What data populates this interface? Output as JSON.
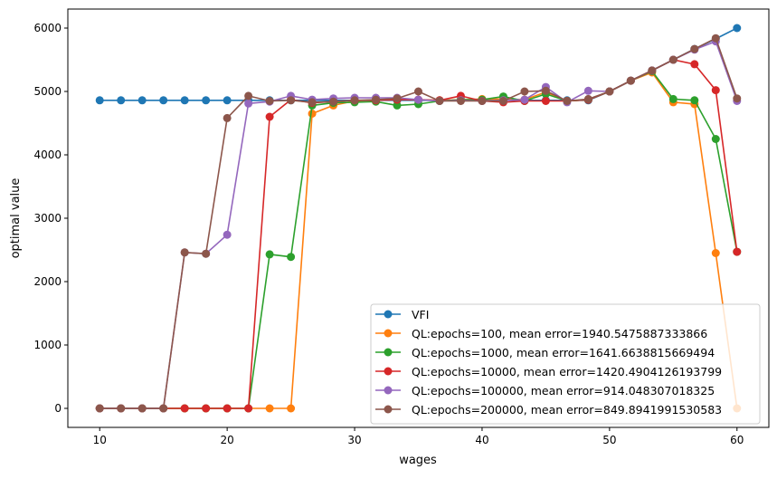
{
  "chart_data": {
    "type": "line",
    "title": "",
    "xlabel": "wages",
    "ylabel": "optimal value",
    "xlim": [
      7.5,
      62.5
    ],
    "ylim": [
      -300,
      6300
    ],
    "xticks": [
      10,
      20,
      30,
      40,
      50,
      60
    ],
    "yticks": [
      0,
      1000,
      2000,
      3000,
      4000,
      5000,
      6000
    ],
    "grid": false,
    "legend_position": "lower-right",
    "marker": "circle",
    "x": [
      10,
      11.667,
      13.333,
      15,
      16.667,
      18.333,
      20,
      21.667,
      23.333,
      25,
      26.667,
      28.333,
      30,
      31.667,
      33.333,
      35,
      36.667,
      38.333,
      40,
      41.667,
      43.333,
      45,
      46.667,
      48.333,
      50,
      51.667,
      53.333,
      55,
      56.667,
      58.333,
      60
    ],
    "series": [
      {
        "name": "VFI",
        "color": "#1f77b4",
        "values": [
          4860,
          4860,
          4860,
          4860,
          4860,
          4860,
          4860,
          4860,
          4860,
          4860,
          4860,
          4860,
          4860,
          4860,
          4860,
          4860,
          4860,
          4860,
          4860,
          4860,
          4860,
          4860,
          4860,
          4860,
          5000,
          5170,
          5330,
          5500,
          5670,
          5830,
          6000
        ]
      },
      {
        "name": "QL:epochs=100, mean error=1940.5475887333866",
        "color": "#ff7f0e",
        "values": [
          0,
          0,
          0,
          0,
          0,
          0,
          0,
          0,
          0,
          0,
          4650,
          4780,
          4850,
          4870,
          4880,
          4870,
          4860,
          4870,
          4880,
          4880,
          4870,
          4990,
          4850,
          4870,
          5000,
          5170,
          5300,
          4830,
          4800,
          2450,
          0
        ]
      },
      {
        "name": "QL:epochs=1000, mean error=1641.6638815669494",
        "color": "#2ca02c",
        "values": [
          0,
          0,
          0,
          0,
          0,
          0,
          0,
          0,
          2430,
          2390,
          4780,
          4820,
          4830,
          4840,
          4780,
          4800,
          4850,
          4870,
          4870,
          4920,
          4850,
          4960,
          4850,
          4870,
          5000,
          5170,
          5320,
          4880,
          4860,
          4250,
          2470
        ]
      },
      {
        "name": "QL:epochs=10000, mean error=1420.4904126193799",
        "color": "#d62728",
        "values": [
          0,
          0,
          0,
          0,
          0,
          0,
          0,
          0,
          4600,
          4870,
          4820,
          4840,
          4860,
          4860,
          4870,
          4870,
          4860,
          4930,
          4850,
          4830,
          4850,
          4850,
          4850,
          4870,
          5000,
          5170,
          5330,
          5500,
          5430,
          5020,
          2470
        ]
      },
      {
        "name": "QL:epochs=100000, mean error=914.048307018325",
        "color": "#9467bd",
        "values": [
          0,
          0,
          0,
          0,
          2460,
          2440,
          2740,
          4810,
          4840,
          4930,
          4870,
          4890,
          4900,
          4900,
          4900,
          4870,
          4850,
          4860,
          4850,
          4860,
          4870,
          5070,
          4830,
          5010,
          5000,
          5170,
          5330,
          5500,
          5660,
          5790,
          4850
        ]
      },
      {
        "name": "QL:epochs=200000, mean error=849.8941991530583",
        "color": "#8c564b",
        "values": [
          0,
          0,
          0,
          0,
          2460,
          2440,
          4580,
          4930,
          4850,
          4860,
          4830,
          4840,
          4860,
          4870,
          4890,
          5000,
          4850,
          4850,
          4850,
          4850,
          5000,
          5010,
          4850,
          4880,
          5000,
          5170,
          5330,
          5500,
          5670,
          5840,
          4890
        ]
      }
    ]
  }
}
